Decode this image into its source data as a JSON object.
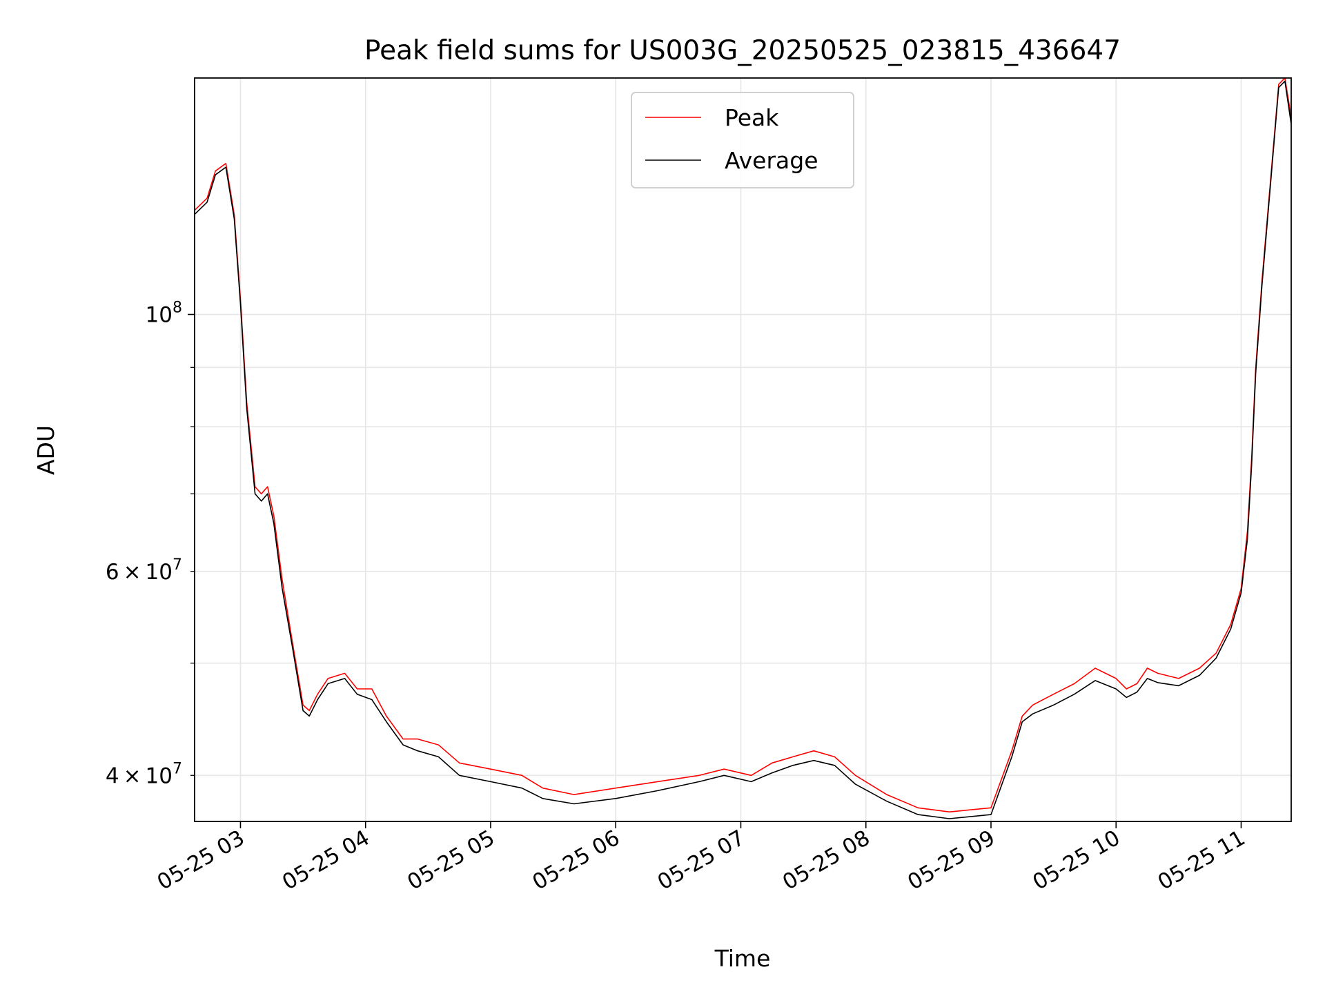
{
  "chart_data": {
    "type": "line",
    "title": "Peak field sums for US003G_20250525_023815_436647",
    "xlabel": "Time",
    "ylabel": "ADU",
    "yscale": "log",
    "xlim": [
      "05-25 02:38",
      "05-25 11:24"
    ],
    "ylim": [
      36500000,
      160000000
    ],
    "grid": true,
    "legend": "upper center",
    "x_ticks": [
      "05-25 03",
      "05-25 04",
      "05-25 05",
      "05-25 06",
      "05-25 07",
      "05-25 08",
      "05-25 09",
      "05-25 10",
      "05-25 11"
    ],
    "y_ticks_major": [
      {
        "value": 100000000,
        "base": "10",
        "exp": "8"
      }
    ],
    "y_ticks_minor": [
      {
        "value": 40000000,
        "mant": "4",
        "base": "10",
        "exp": "7"
      },
      {
        "value": 60000000,
        "mant": "6",
        "base": "10",
        "exp": "7"
      }
    ],
    "y_minor_unlabeled": [
      50000000,
      70000000,
      80000000,
      90000000
    ],
    "series": [
      {
        "name": "Peak",
        "color": "#ff0000",
        "x": [
          "05-25 02:38",
          "05-25 02:40",
          "05-25 02:44",
          "05-25 02:48",
          "05-25 02:53",
          "05-25 02:57",
          "05-25 03:00",
          "05-25 03:03",
          "05-25 03:07",
          "05-25 03:10",
          "05-25 03:13",
          "05-25 03:16",
          "05-25 03:20",
          "05-25 03:25",
          "05-25 03:30",
          "05-25 03:33",
          "05-25 03:37",
          "05-25 03:42",
          "05-25 03:50",
          "05-25 03:56",
          "05-25 04:03",
          "05-25 04:10",
          "05-25 04:18",
          "05-25 04:25",
          "05-25 04:35",
          "05-25 04:45",
          "05-25 05:00",
          "05-25 05:15",
          "05-25 05:25",
          "05-25 05:40",
          "05-25 06:00",
          "05-25 06:20",
          "05-25 06:40",
          "05-25 06:52",
          "05-25 07:05",
          "05-25 07:15",
          "05-25 07:25",
          "05-25 07:35",
          "05-25 07:45",
          "05-25 07:55",
          "05-25 08:10",
          "05-25 08:25",
          "05-25 08:40",
          "05-25 09:00",
          "05-25 09:10",
          "05-25 09:15",
          "05-25 09:20",
          "05-25 09:30",
          "05-25 09:40",
          "05-25 09:50",
          "05-25 10:00",
          "05-25 10:05",
          "05-25 10:10",
          "05-25 10:15",
          "05-25 10:20",
          "05-25 10:30",
          "05-25 10:40",
          "05-25 10:48",
          "05-25 10:55",
          "05-25 11:00",
          "05-25 11:03",
          "05-25 11:05",
          "05-25 11:07",
          "05-25 11:10",
          "05-25 11:14",
          "05-25 11:18",
          "05-25 11:21",
          "05-25 11:24"
        ],
        "y": [
          123000000,
          124000000,
          126000000,
          133000000,
          135000000,
          122000000,
          103000000,
          84000000,
          71000000,
          70000000,
          71000000,
          67000000,
          59000000,
          52000000,
          46000000,
          45500000,
          47000000,
          48500000,
          49000000,
          47500000,
          47500000,
          45000000,
          43000000,
          43000000,
          42500000,
          41000000,
          40500000,
          40000000,
          39000000,
          38500000,
          39000000,
          39500000,
          40000000,
          40500000,
          40000000,
          41000000,
          41500000,
          42000000,
          41500000,
          40000000,
          38500000,
          37500000,
          37200000,
          37500000,
          42000000,
          45000000,
          46000000,
          47000000,
          48000000,
          49500000,
          48500000,
          47500000,
          48000000,
          49500000,
          49000000,
          48500000,
          49500000,
          51000000,
          54000000,
          58000000,
          65000000,
          75000000,
          90000000,
          107000000,
          130000000,
          158000000,
          160000000,
          148000000
        ]
      },
      {
        "name": "Average",
        "color": "#000000",
        "x": [
          "05-25 02:38",
          "05-25 02:40",
          "05-25 02:44",
          "05-25 02:48",
          "05-25 02:53",
          "05-25 02:57",
          "05-25 03:00",
          "05-25 03:03",
          "05-25 03:07",
          "05-25 03:10",
          "05-25 03:13",
          "05-25 03:16",
          "05-25 03:20",
          "05-25 03:25",
          "05-25 03:30",
          "05-25 03:33",
          "05-25 03:37",
          "05-25 03:42",
          "05-25 03:50",
          "05-25 03:56",
          "05-25 04:03",
          "05-25 04:10",
          "05-25 04:18",
          "05-25 04:25",
          "05-25 04:35",
          "05-25 04:45",
          "05-25 05:00",
          "05-25 05:15",
          "05-25 05:25",
          "05-25 05:40",
          "05-25 06:00",
          "05-25 06:20",
          "05-25 06:40",
          "05-25 06:52",
          "05-25 07:05",
          "05-25 07:15",
          "05-25 07:25",
          "05-25 07:35",
          "05-25 07:45",
          "05-25 07:55",
          "05-25 08:10",
          "05-25 08:25",
          "05-25 08:40",
          "05-25 09:00",
          "05-25 09:10",
          "05-25 09:15",
          "05-25 09:20",
          "05-25 09:30",
          "05-25 09:40",
          "05-25 09:50",
          "05-25 10:00",
          "05-25 10:05",
          "05-25 10:10",
          "05-25 10:15",
          "05-25 10:20",
          "05-25 10:30",
          "05-25 10:40",
          "05-25 10:48",
          "05-25 10:55",
          "05-25 11:00",
          "05-25 11:03",
          "05-25 11:05",
          "05-25 11:07",
          "05-25 11:10",
          "05-25 11:14",
          "05-25 11:18",
          "05-25 11:21",
          "05-25 11:24"
        ],
        "y": [
          122000000,
          123000000,
          125000000,
          132000000,
          134000000,
          121000000,
          102000000,
          83000000,
          70000000,
          69000000,
          70000000,
          66000000,
          58000000,
          51500000,
          45500000,
          45000000,
          46500000,
          48000000,
          48500000,
          47000000,
          46500000,
          44500000,
          42500000,
          42000000,
          41500000,
          40000000,
          39500000,
          39000000,
          38200000,
          37800000,
          38200000,
          38800000,
          39500000,
          40000000,
          39500000,
          40200000,
          40800000,
          41200000,
          40800000,
          39300000,
          38000000,
          37000000,
          36700000,
          37000000,
          41500000,
          44500000,
          45200000,
          46000000,
          47000000,
          48300000,
          47500000,
          46700000,
          47200000,
          48500000,
          48100000,
          47800000,
          48800000,
          50500000,
          53500000,
          57500000,
          64000000,
          74000000,
          89000000,
          106000000,
          129000000,
          157000000,
          159000000,
          146000000
        ]
      }
    ]
  }
}
